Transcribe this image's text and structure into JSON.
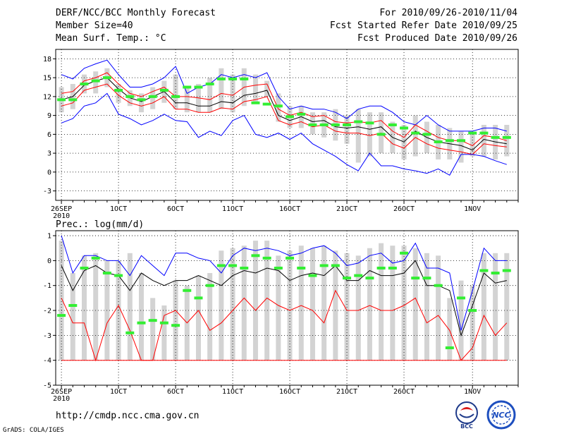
{
  "header": {
    "title": "DERF/NCC/BCC Monthly Forecast",
    "member_size": "Member Size=40",
    "variable": "Mean Surf. Temp.: °C",
    "period": "For 2010/09/26-2010/11/04",
    "refer_date": "Fcst Started Refer Date 2010/09/25",
    "produced_date": "Fcst Produced Date 2010/09/26"
  },
  "footer": {
    "url": "http://cmdp.ncc.cma.gov.cn",
    "credit": "GrADS: COLA/IGES",
    "logo_bcc": "BCC",
    "logo_ncc": "NCC"
  },
  "colors": {
    "ensemble_range": "#d3d3d3",
    "mean": "#000000",
    "max": "#0000ff",
    "min_band": "#ff0000",
    "observed": "#33ee33",
    "grid": "#000000"
  },
  "chart_data": [
    {
      "type": "line",
      "title": "Mean Surf. Temp.: °C",
      "x_tick_labels": [
        "26SEP",
        "1OCT",
        "6OCT",
        "11OCT",
        "16OCT",
        "21OCT",
        "26OCT",
        "1NOV"
      ],
      "x_tick_days": [
        0,
        5,
        10,
        15,
        20,
        25,
        30,
        36
      ],
      "year_label": "2010",
      "y_ticks": [
        -3,
        0,
        3,
        6,
        9,
        12,
        15,
        18
      ],
      "ylim": [
        -4.5,
        19.5
      ],
      "days": 40,
      "series": [
        {
          "name": "upper",
          "values": [
            15.5,
            14.8,
            16.5,
            17.2,
            17.8,
            15.5,
            13.5,
            13.5,
            14.0,
            15.0,
            16.8,
            12.5,
            13.5,
            14.0,
            15.5,
            15.0,
            15.5,
            15.0,
            15.8,
            12.0,
            10.0,
            10.5,
            10.0,
            10.0,
            9.5,
            8.5,
            10.0,
            10.5,
            10.5,
            9.5,
            8.0,
            7.5,
            9.0,
            7.5,
            6.5,
            6.5,
            6.5,
            7.0,
            7.0,
            6.5
          ]
        },
        {
          "name": "upper-red",
          "values": [
            12.5,
            12.8,
            14.5,
            15.0,
            15.8,
            14.0,
            12.5,
            12.0,
            12.8,
            13.5,
            12.0,
            12.0,
            11.8,
            11.5,
            12.5,
            12.2,
            13.5,
            13.8,
            14.0,
            10.0,
            9.0,
            9.5,
            8.8,
            9.0,
            8.0,
            7.8,
            8.0,
            7.8,
            8.2,
            6.5,
            5.5,
            7.5,
            6.5,
            5.5,
            5.0,
            5.0,
            4.2,
            5.8,
            5.5,
            5.0
          ]
        },
        {
          "name": "mean",
          "values": [
            11.5,
            12.0,
            13.8,
            14.5,
            15.0,
            13.2,
            11.8,
            11.2,
            12.0,
            12.8,
            11.0,
            11.0,
            10.5,
            10.5,
            11.2,
            11.0,
            12.2,
            12.5,
            13.0,
            9.0,
            8.2,
            8.8,
            8.0,
            8.2,
            7.2,
            7.0,
            7.2,
            6.8,
            7.2,
            5.5,
            4.8,
            6.5,
            5.5,
            4.8,
            4.5,
            4.2,
            3.5,
            5.2,
            4.8,
            4.5
          ]
        },
        {
          "name": "lower-red",
          "values": [
            10.5,
            11.0,
            13.0,
            13.5,
            14.0,
            12.2,
            11.0,
            10.5,
            11.0,
            12.0,
            10.0,
            10.0,
            9.5,
            9.5,
            10.2,
            10.0,
            11.2,
            11.5,
            12.0,
            8.2,
            7.5,
            8.0,
            7.2,
            7.5,
            6.5,
            6.2,
            6.2,
            5.8,
            6.2,
            4.5,
            3.8,
            5.5,
            4.5,
            3.8,
            3.5,
            3.2,
            2.8,
            4.5,
            4.2,
            4.0
          ]
        },
        {
          "name": "lower",
          "values": [
            7.8,
            8.5,
            10.5,
            11.0,
            12.5,
            9.2,
            8.5,
            7.5,
            8.2,
            9.2,
            8.2,
            8.0,
            5.5,
            6.5,
            5.8,
            8.2,
            9.0,
            6.0,
            5.5,
            6.2,
            5.2,
            6.2,
            4.5,
            3.5,
            2.5,
            1.2,
            0.2,
            3.0,
            1.0,
            1.0,
            0.5,
            0.2,
            -0.2,
            0.5,
            -0.5,
            2.8,
            2.8,
            2.5,
            1.8,
            1.2
          ]
        },
        {
          "name": "observed",
          "values": [
            11.5,
            11.5,
            14.0,
            14.5,
            15.0,
            13.0,
            12.0,
            11.5,
            12.0,
            13.0,
            12.0,
            13.5,
            13.5,
            14.0,
            14.8,
            14.8,
            14.8,
            11.0,
            10.8,
            10.5,
            8.8,
            9.2,
            7.5,
            7.5,
            7.5,
            7.5,
            8.0,
            7.8,
            6.0,
            7.5,
            7.0,
            6.2,
            6.0,
            4.8,
            5.0,
            5.0,
            6.2,
            6.2,
            5.5,
            5.5
          ]
        }
      ],
      "ensemble_range": {
        "low": [
          9.5,
          10.0,
          12.5,
          12.5,
          13.5,
          11.0,
          10.5,
          9.5,
          10.0,
          11.0,
          10.0,
          9.5,
          9.5,
          9.5,
          10.0,
          9.5,
          10.5,
          11.0,
          12.0,
          8.0,
          7.0,
          7.0,
          6.0,
          5.5,
          5.0,
          4.5,
          1.5,
          2.5,
          3.0,
          3.0,
          2.0,
          2.5,
          3.0,
          2.0,
          2.0,
          1.5,
          2.5,
          2.5,
          2.0,
          2.5
        ],
        "high": [
          13.5,
          14.0,
          15.5,
          16.0,
          16.5,
          14.0,
          13.0,
          12.5,
          13.5,
          14.5,
          15.5,
          13.5,
          14.0,
          15.0,
          16.5,
          15.5,
          16.5,
          15.5,
          14.5,
          12.5,
          10.5,
          10.5,
          9.5,
          9.5,
          10.0,
          9.0,
          10.0,
          9.5,
          9.5,
          8.0,
          7.5,
          9.0,
          8.0,
          7.5,
          7.0,
          6.5,
          6.0,
          7.5,
          7.5,
          7.5
        ]
      }
    },
    {
      "type": "line",
      "title": "Prec.: log(mm/d)",
      "x_tick_labels": [
        "26SEP",
        "1OCT",
        "6OCT",
        "11OCT",
        "16OCT",
        "21OCT",
        "26OCT",
        "1NOV"
      ],
      "x_tick_days": [
        0,
        5,
        10,
        15,
        20,
        25,
        30,
        36
      ],
      "year_label": "2010",
      "y_ticks": [
        -5,
        -4,
        -3,
        -2,
        -1,
        0,
        1
      ],
      "ylim": [
        -5,
        1.2
      ],
      "days": 40,
      "series": [
        {
          "name": "upper",
          "values": [
            1.0,
            -0.5,
            0.2,
            0.2,
            0.0,
            0.0,
            -0.6,
            0.2,
            -0.2,
            -0.6,
            0.3,
            0.3,
            0.1,
            0.0,
            -0.5,
            0.2,
            0.5,
            0.4,
            0.5,
            0.4,
            0.2,
            0.3,
            0.5,
            0.6,
            0.3,
            -0.2,
            -0.1,
            0.2,
            0.3,
            -0.1,
            0.0,
            0.7,
            -0.3,
            -0.3,
            -0.5,
            -2.8,
            -1.2,
            0.5,
            0.0,
            0.0
          ]
        },
        {
          "name": "mean",
          "values": [
            -0.2,
            -1.2,
            -0.4,
            -0.2,
            -0.5,
            -0.6,
            -1.2,
            -0.5,
            -0.8,
            -1.0,
            -0.8,
            -0.8,
            -0.6,
            -0.8,
            -1.0,
            -0.6,
            -0.4,
            -0.5,
            -0.3,
            -0.4,
            -0.8,
            -0.6,
            -0.5,
            -0.6,
            -0.2,
            -0.8,
            -0.8,
            -0.4,
            -0.6,
            -0.6,
            -0.5,
            0.0,
            -1.0,
            -1.0,
            -1.2,
            -3.0,
            -1.8,
            -0.5,
            -0.9,
            -0.8
          ]
        },
        {
          "name": "lower",
          "values": [
            -1.5,
            -2.5,
            -2.5,
            -4.0,
            -2.5,
            -1.8,
            -2.8,
            -4.0,
            -4.0,
            -2.2,
            -2.0,
            -2.5,
            -2.0,
            -2.8,
            -2.5,
            -2.0,
            -1.5,
            -2.0,
            -1.5,
            -1.8,
            -2.0,
            -1.8,
            -2.0,
            -2.5,
            -1.2,
            -2.0,
            -2.0,
            -1.8,
            -2.0,
            -2.0,
            -1.8,
            -1.5,
            -2.5,
            -2.2,
            -2.8,
            -4.0,
            -3.5,
            -2.2,
            -3.0,
            -2.5
          ]
        },
        {
          "name": "floor",
          "values": [
            -4.0,
            -4.0,
            -4.0,
            -4.0,
            -4.0,
            -4.0,
            -4.0,
            -4.0,
            -4.0,
            -4.0,
            -4.0,
            -4.0,
            -4.0,
            -4.0,
            -4.0,
            -4.0,
            -4.0,
            -4.0,
            -4.0,
            -4.0,
            -4.0,
            -4.0,
            -4.0,
            -4.0,
            -4.0,
            -4.0,
            -4.0,
            -4.0,
            -4.0,
            -4.0,
            -4.0,
            -4.0,
            -4.0,
            -4.0,
            -4.0,
            -4.0,
            -4.0,
            -4.0,
            -4.0,
            -4.0
          ]
        },
        {
          "name": "observed",
          "values": [
            -2.2,
            -1.8,
            -0.3,
            0.1,
            -0.5,
            -0.6,
            -2.9,
            -2.5,
            -2.4,
            -2.5,
            -2.6,
            -1.2,
            -1.5,
            -1.0,
            -0.2,
            -0.2,
            -0.3,
            0.2,
            0.1,
            -0.3,
            0.1,
            -0.3,
            -0.6,
            -0.2,
            -0.2,
            -0.7,
            -0.6,
            -0.7,
            -0.3,
            -0.3,
            0.3,
            -0.7,
            -0.7,
            -1.0,
            -3.5,
            -1.5,
            -2.0,
            -0.4,
            -0.5,
            -0.4
          ]
        }
      ],
      "ensemble_range": {
        "low": [
          -4.0,
          -4.0,
          -4.0,
          -4.0,
          -4.0,
          -4.0,
          -4.0,
          -4.0,
          -4.0,
          -4.0,
          -4.0,
          -4.0,
          -4.0,
          -4.0,
          -4.0,
          -4.0,
          -4.0,
          -4.0,
          -4.0,
          -4.0,
          -4.0,
          -4.0,
          -4.0,
          -4.0,
          -4.0,
          -4.0,
          -4.0,
          -4.0,
          -4.0,
          -4.0,
          -4.0,
          -4.0,
          -4.0,
          -4.0,
          -4.0,
          -4.0,
          -4.0,
          -4.0,
          -4.0,
          -4.0
        ],
        "high": [
          0.8,
          -0.5,
          0.2,
          0.3,
          0.0,
          0.0,
          0.3,
          -0.5,
          -1.5,
          -1.8,
          -0.8,
          -1.0,
          -0.6,
          -0.5,
          0.4,
          0.5,
          0.6,
          0.8,
          0.8,
          0.2,
          0.4,
          0.6,
          0.5,
          0.6,
          0.4,
          0.3,
          0.2,
          0.5,
          0.7,
          0.6,
          0.6,
          0.5,
          0.3,
          0.2,
          -1.5,
          -0.8,
          -1.0,
          0.3,
          0.3,
          0.3
        ]
      }
    }
  ]
}
